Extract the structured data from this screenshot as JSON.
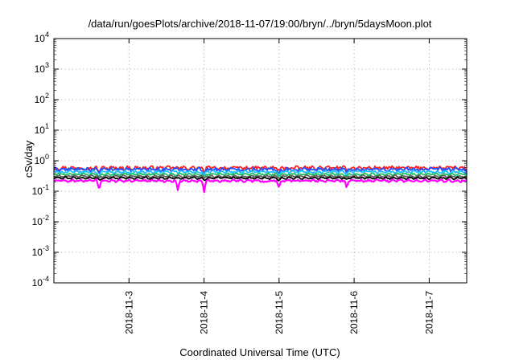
{
  "chart_data": {
    "type": "line",
    "title": "/data/run/goesPlots/archive/2018-11-07/19:00/bryn/../bryn/5daysMoon.plot",
    "xlabel": "Coordinated Universal Time (UTC)",
    "ylabel": "cSv/day",
    "yscale": "log",
    "ylim": [
      0.0001,
      10000
    ],
    "xlim": [
      0,
      5.5
    ],
    "grid": true,
    "x_ticks": [
      {
        "x": 1,
        "label": "2018-11-3"
      },
      {
        "x": 2,
        "label": "2018-11-4"
      },
      {
        "x": 3,
        "label": "2018-11-5"
      },
      {
        "x": 4,
        "label": "2018-11-6"
      },
      {
        "x": 5,
        "label": "2018-11-7"
      }
    ],
    "y_ticks": [
      {
        "value": 0.0001,
        "base": "10",
        "exp": "-4"
      },
      {
        "value": 0.001,
        "base": "10",
        "exp": "-3"
      },
      {
        "value": 0.01,
        "base": "10",
        "exp": "-2"
      },
      {
        "value": 0.1,
        "base": "10",
        "exp": "-1"
      },
      {
        "value": 1,
        "base": "10",
        "exp": "0"
      },
      {
        "value": 10,
        "base": "10",
        "exp": "1"
      },
      {
        "value": 100,
        "base": "10",
        "exp": "2"
      },
      {
        "value": 1000,
        "base": "10",
        "exp": "3"
      },
      {
        "value": 10000,
        "base": "10",
        "exp": "4"
      }
    ],
    "series": [
      {
        "color": "#ff2020",
        "base": 0.58,
        "noise": 0.12,
        "dips": [
          [
            0.6,
            0.75
          ],
          [
            2.0,
            0.7
          ],
          [
            3.0,
            0.75
          ],
          [
            3.9,
            0.8
          ],
          [
            5.5,
            0.75
          ]
        ]
      },
      {
        "color": "#2050ff",
        "base": 0.52,
        "noise": 0.12,
        "dips": [
          [
            0.6,
            0.7
          ],
          [
            2.0,
            0.7
          ],
          [
            3.0,
            0.7
          ],
          [
            3.9,
            0.8
          ],
          [
            5.5,
            0.75
          ]
        ]
      },
      {
        "color": "#20c0ff",
        "base": 0.43,
        "noise": 0.08,
        "dips": [
          [
            0.6,
            0.7
          ],
          [
            2.0,
            0.75
          ],
          [
            3.0,
            0.75
          ],
          [
            3.9,
            0.8
          ],
          [
            5.5,
            0.8
          ]
        ]
      },
      {
        "color": "#20c060",
        "base": 0.36,
        "noise": 0.06,
        "dips": [
          [
            0.6,
            0.8
          ],
          [
            2.0,
            0.8
          ],
          [
            3.0,
            0.8
          ],
          [
            3.9,
            0.85
          ],
          [
            5.5,
            0.8
          ]
        ]
      },
      {
        "color": "#606060",
        "base": 0.31,
        "noise": 0.05,
        "dips": [
          [
            0.6,
            0.85
          ],
          [
            2.0,
            0.85
          ],
          [
            3.0,
            0.85
          ],
          [
            3.9,
            0.9
          ],
          [
            5.5,
            0.85
          ]
        ]
      },
      {
        "color": "#000000",
        "base": 0.27,
        "noise": 0.05,
        "dips": [
          [
            0.6,
            0.85
          ],
          [
            2.0,
            0.85
          ],
          [
            3.0,
            0.85
          ],
          [
            3.9,
            0.9
          ],
          [
            5.5,
            0.85
          ]
        ]
      },
      {
        "color": "#ff00ff",
        "base": 0.22,
        "noise": 0.06,
        "dips": [
          [
            0.6,
            0.5
          ],
          [
            1.65,
            0.5
          ],
          [
            2.0,
            0.45
          ],
          [
            2.8,
            0.85
          ],
          [
            3.0,
            0.55
          ],
          [
            3.9,
            0.6
          ],
          [
            5.55,
            0.2
          ]
        ]
      }
    ]
  }
}
